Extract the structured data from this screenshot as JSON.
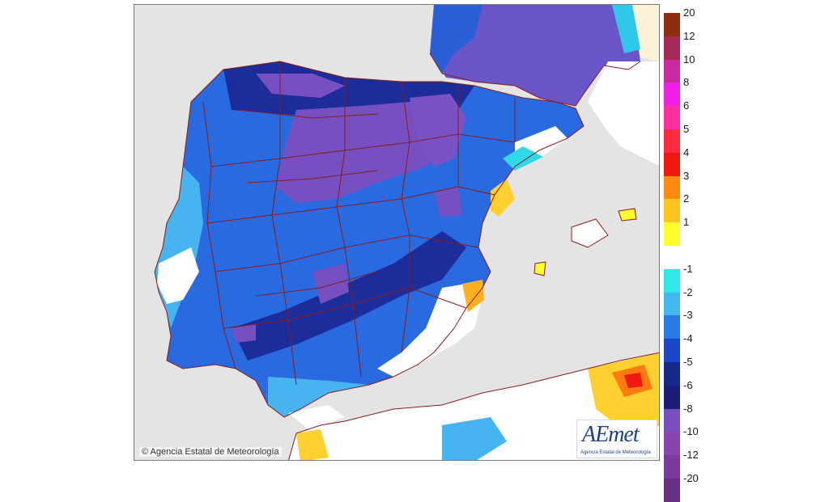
{
  "copyright": "© Agencia Estatal de Meteorología",
  "logo": {
    "text": "AEmet",
    "subtitle": "Agencia Estatal de Meteorología"
  },
  "legend": {
    "positive": [
      {
        "label": "20",
        "color": "#8b2f0c"
      },
      {
        "label": "12",
        "color": "#a8285a"
      },
      {
        "label": "10",
        "color": "#cc2aa0"
      },
      {
        "label": "8",
        "color": "#f020e6"
      },
      {
        "label": "6",
        "color": "#ff30a0"
      },
      {
        "label": "5",
        "color": "#ff2a40"
      },
      {
        "label": "4",
        "color": "#f01810"
      },
      {
        "label": "3",
        "color": "#ff8a10"
      },
      {
        "label": "2",
        "color": "#ffc420"
      },
      {
        "label": "1",
        "color": "#ffff30"
      }
    ],
    "negative": [
      {
        "label": "-1",
        "color": "#30e8e8"
      },
      {
        "label": "-2",
        "color": "#46b8f0"
      },
      {
        "label": "-3",
        "color": "#2a7ae6"
      },
      {
        "label": "-4",
        "color": "#1a48c8"
      },
      {
        "label": "-5",
        "color": "#162a8a"
      },
      {
        "label": "-6",
        "color": "#1c1c7a"
      },
      {
        "label": "-8",
        "color": "#7a50c0"
      },
      {
        "label": "-10",
        "color": "#8a44b0"
      },
      {
        "label": "-12",
        "color": "#7a3c9c"
      },
      {
        "label": "-20",
        "color": "#6a3086"
      }
    ]
  }
}
